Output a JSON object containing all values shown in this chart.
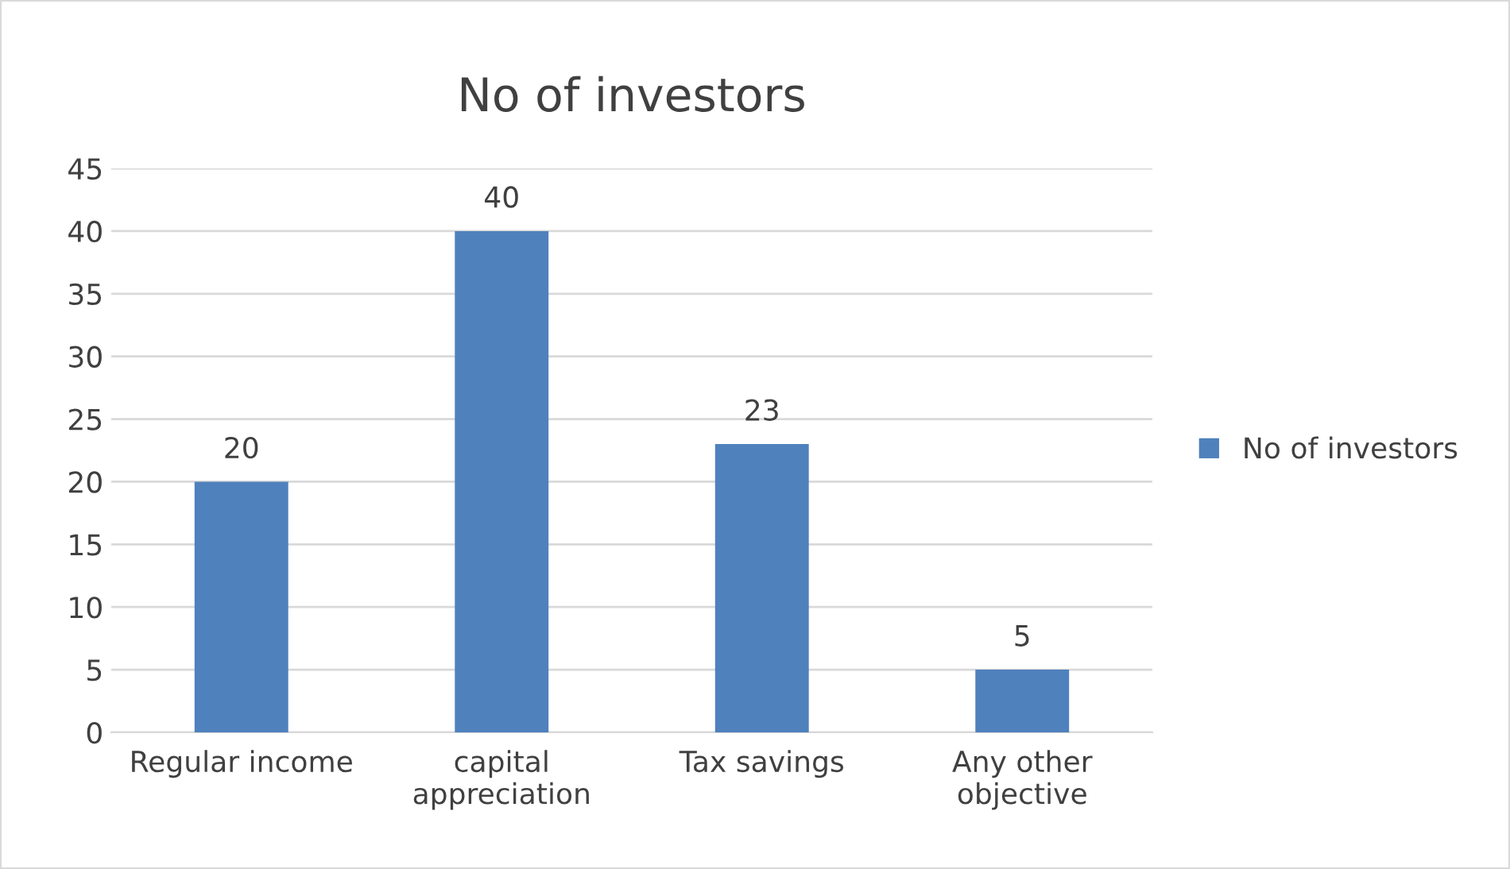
{
  "chart_data": {
    "type": "bar",
    "title": "No of investors",
    "categories": [
      "Regular income",
      "capital appreciation",
      "Tax savings",
      "Any other objective"
    ],
    "series": [
      {
        "name": "No of investors",
        "color": "#4f81bd",
        "values": [
          20,
          40,
          23,
          5
        ]
      }
    ],
    "ylim": [
      0,
      45
    ],
    "yticks": [
      0,
      5,
      10,
      15,
      20,
      25,
      30,
      35,
      40,
      45
    ],
    "grid": "y",
    "legend": "right",
    "data_labels": true
  }
}
